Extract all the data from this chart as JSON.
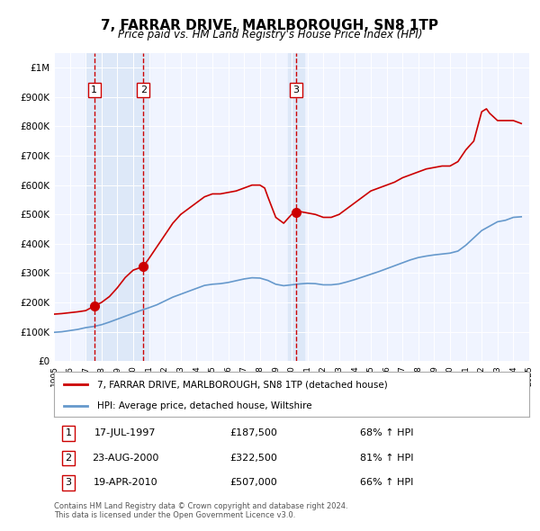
{
  "title": "7, FARRAR DRIVE, MARLBOROUGH, SN8 1TP",
  "subtitle": "Price paid vs. HM Land Registry's House Price Index (HPI)",
  "xlabel": "",
  "ylabel": "",
  "background_color": "#ffffff",
  "plot_bg_color": "#f0f4ff",
  "grid_color": "#ffffff",
  "red_line_color": "#cc0000",
  "blue_line_color": "#6699cc",
  "sale_marker_color": "#cc0000",
  "vline_color": "#cc0000",
  "highlight_bg": "#dde8f8",
  "legend_box_color": "#cc0000",
  "legend_box_blue": "#6699cc",
  "sales": [
    {
      "label": 1,
      "date_str": "17-JUL-1997",
      "year": 1997.54,
      "price": 187500,
      "pct": "68%",
      "direction": "↑"
    },
    {
      "label": 2,
      "date_str": "23-AUG-2000",
      "year": 2000.64,
      "price": 322500,
      "pct": "81%",
      "direction": "↑"
    },
    {
      "label": 3,
      "date_str": "19-APR-2010",
      "year": 2010.29,
      "price": 507000,
      "pct": "66%",
      "direction": "↑"
    }
  ],
  "hpi_red_data": {
    "years": [
      1995,
      1995.5,
      1996,
      1996.5,
      1997,
      1997.54,
      1998,
      1998.5,
      1999,
      1999.5,
      2000,
      2000.64,
      2001,
      2001.5,
      2002,
      2002.5,
      2003,
      2003.5,
      2004,
      2004.5,
      2005,
      2005.5,
      2006,
      2006.5,
      2007,
      2007.5,
      2008,
      2008.3,
      2008.5,
      2009,
      2009.5,
      2010,
      2010.29,
      2010.5,
      2011,
      2011.5,
      2012,
      2012.5,
      2013,
      2013.5,
      2014,
      2014.5,
      2015,
      2015.5,
      2016,
      2016.5,
      2017,
      2017.5,
      2018,
      2018.5,
      2019,
      2019.5,
      2020,
      2020.5,
      2021,
      2021.5,
      2022,
      2022.3,
      2022.5,
      2023,
      2023.5,
      2024,
      2024.5
    ],
    "values": [
      160000,
      162000,
      165000,
      168000,
      172000,
      187500,
      200000,
      220000,
      250000,
      285000,
      310000,
      322500,
      350000,
      390000,
      430000,
      470000,
      500000,
      520000,
      540000,
      560000,
      570000,
      570000,
      575000,
      580000,
      590000,
      600000,
      600000,
      590000,
      560000,
      490000,
      470000,
      500000,
      507000,
      510000,
      505000,
      500000,
      490000,
      490000,
      500000,
      520000,
      540000,
      560000,
      580000,
      590000,
      600000,
      610000,
      625000,
      635000,
      645000,
      655000,
      660000,
      665000,
      665000,
      680000,
      720000,
      750000,
      850000,
      860000,
      845000,
      820000,
      820000,
      820000,
      810000
    ]
  },
  "hpi_blue_data": {
    "years": [
      1995,
      1995.5,
      1996,
      1996.5,
      1997,
      1997.5,
      1998,
      1998.5,
      1999,
      1999.5,
      2000,
      2000.5,
      2001,
      2001.5,
      2002,
      2002.5,
      2003,
      2003.5,
      2004,
      2004.5,
      2005,
      2005.5,
      2006,
      2006.5,
      2007,
      2007.5,
      2008,
      2008.5,
      2009,
      2009.5,
      2010,
      2010.5,
      2011,
      2011.5,
      2012,
      2012.5,
      2013,
      2013.5,
      2014,
      2014.5,
      2015,
      2015.5,
      2016,
      2016.5,
      2017,
      2017.5,
      2018,
      2018.5,
      2019,
      2019.5,
      2020,
      2020.5,
      2021,
      2021.5,
      2022,
      2022.5,
      2023,
      2023.5,
      2024,
      2024.5
    ],
    "values": [
      98000,
      100000,
      104000,
      108000,
      114000,
      118000,
      124000,
      133000,
      143000,
      153000,
      163000,
      173000,
      182000,
      192000,
      205000,
      218000,
      228000,
      238000,
      248000,
      258000,
      262000,
      264000,
      268000,
      274000,
      280000,
      284000,
      283000,
      275000,
      262000,
      257000,
      260000,
      263000,
      265000,
      264000,
      260000,
      260000,
      263000,
      270000,
      278000,
      287000,
      296000,
      305000,
      315000,
      325000,
      335000,
      345000,
      353000,
      358000,
      362000,
      365000,
      368000,
      375000,
      395000,
      420000,
      445000,
      460000,
      475000,
      480000,
      490000,
      492000
    ]
  },
  "yticks": [
    0,
    100000,
    200000,
    300000,
    400000,
    500000,
    600000,
    700000,
    800000,
    900000,
    1000000
  ],
  "ytick_labels": [
    "£0",
    "£100K",
    "£200K",
    "£300K",
    "£400K",
    "£500K",
    "£600K",
    "£700K",
    "£800K",
    "£900K",
    "£1M"
  ],
  "xlim": [
    1995,
    2025
  ],
  "ylim": [
    0,
    1050000
  ],
  "xtick_years": [
    1995,
    1996,
    1997,
    1998,
    1999,
    2000,
    2001,
    2002,
    2003,
    2004,
    2005,
    2006,
    2007,
    2008,
    2009,
    2010,
    2011,
    2012,
    2013,
    2014,
    2015,
    2016,
    2017,
    2018,
    2019,
    2020,
    2021,
    2022,
    2023,
    2024,
    2025
  ],
  "footer_text": "Contains HM Land Registry data © Crown copyright and database right 2024.\nThis data is licensed under the Open Government Licence v3.0.",
  "legend_line1": "7, FARRAR DRIVE, MARLBOROUGH, SN8 1TP (detached house)",
  "legend_line2": "HPI: Average price, detached house, Wiltshire",
  "table_rows": [
    {
      "num": 1,
      "date": "17-JUL-1997",
      "price": "£187,500",
      "pct": "68% ↑ HPI"
    },
    {
      "num": 2,
      "date": "23-AUG-2000",
      "price": "£322,500",
      "pct": "81% ↑ HPI"
    },
    {
      "num": 3,
      "date": "19-APR-2010",
      "price": "£507,000",
      "pct": "66% ↑ HPI"
    }
  ]
}
